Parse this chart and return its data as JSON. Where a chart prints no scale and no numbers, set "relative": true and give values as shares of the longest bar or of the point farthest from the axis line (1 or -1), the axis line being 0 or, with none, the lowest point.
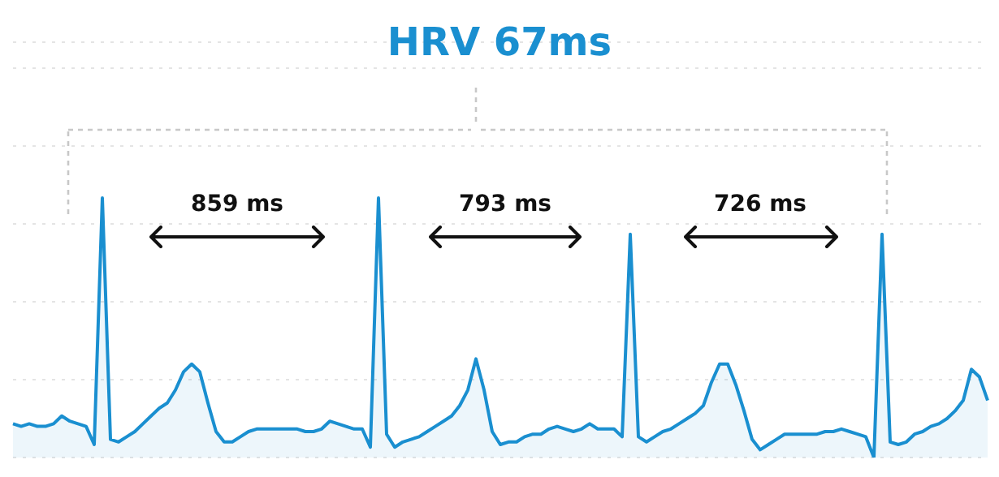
{
  "chart_data": {
    "type": "area",
    "title": "HRV 67ms",
    "relative": true,
    "grid": "y",
    "annotations": [
      "859 ms",
      "793 ms",
      "726 ms"
    ],
    "categories": [
      null,
      null,
      null,
      null,
      null,
      null,
      null,
      null,
      null,
      null,
      null,
      null,
      null,
      null,
      null,
      null,
      null,
      null,
      null,
      null,
      null,
      null,
      null,
      null,
      null,
      null,
      null,
      null,
      null,
      null,
      null,
      null,
      null,
      null,
      null,
      null,
      null,
      null,
      null,
      null,
      null,
      null,
      null,
      null,
      null,
      null,
      null,
      null,
      null,
      null,
      null,
      null,
      null,
      null,
      null,
      null,
      null,
      null,
      null,
      null,
      null,
      null,
      null,
      null,
      null,
      null,
      null,
      null,
      null,
      null,
      null,
      null,
      null,
      null,
      null,
      null,
      null,
      null,
      null,
      null,
      null,
      null,
      null,
      null,
      null,
      null,
      null,
      null,
      null,
      null,
      null,
      null,
      null,
      null,
      null,
      null,
      null,
      null,
      null,
      null,
      null,
      null,
      null,
      null,
      null,
      null,
      null,
      null,
      null,
      null,
      null,
      null,
      null,
      null,
      null,
      null,
      null,
      null,
      null,
      null,
      null
    ],
    "series": [
      {
        "color": "#1a8fd0",
        "values": [
          0.13,
          0.12,
          0.13,
          0.12,
          0.12,
          0.13,
          0.16,
          0.14,
          0.13,
          0.12,
          0.05,
          1,
          0.07,
          0.06,
          0.08,
          0.1,
          0.13,
          0.16,
          0.19,
          0.21,
          0.26,
          0.33,
          0.36,
          0.33,
          0.21,
          0.1,
          0.06,
          0.06,
          0.08,
          0.1,
          0.11,
          0.11,
          0.11,
          0.11,
          0.11,
          0.11,
          0.1,
          0.1,
          0.11,
          0.14,
          0.13,
          0.12,
          0.11,
          0.11,
          0.04,
          1,
          0.09,
          0.04,
          0.06,
          0.07,
          0.08,
          0.1,
          0.12,
          0.14,
          0.16,
          0.2,
          0.26,
          0.38,
          0.26,
          0.1,
          0.05,
          0.06,
          0.06,
          0.08,
          0.09,
          0.09,
          0.11,
          0.12,
          0.11,
          0.1,
          0.11,
          0.13,
          0.11,
          0.11,
          0.11,
          0.08,
          0.86,
          0.08,
          0.06,
          0.08,
          0.1,
          0.11,
          0.13,
          0.15,
          0.17,
          0.2,
          0.29,
          0.36,
          0.36,
          0.28,
          0.18,
          0.07,
          0.03,
          0.05,
          0.07,
          0.09,
          0.09,
          0.09,
          0.09,
          0.09,
          0.1,
          0.1,
          0.11,
          0.1,
          0.09,
          0.08,
          0,
          0.86,
          0.06,
          0.05,
          0.06,
          0.09,
          0.1,
          0.12,
          0.13,
          0.15,
          0.18,
          0.22,
          0.34,
          0.31,
          0.22
        ]
      }
    ]
  }
}
